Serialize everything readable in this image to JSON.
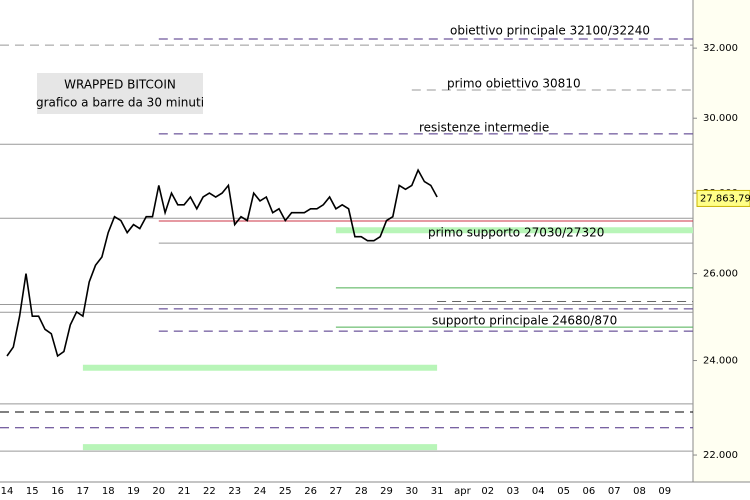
{
  "chart_data": {
    "type": "line",
    "log_scale": true,
    "title": "WRAPPED BITCOIN",
    "subtitle": "grafico a barre da 30 minuti",
    "categories": [
      "14",
      null,
      null,
      null,
      "15",
      null,
      null,
      null,
      "16",
      null,
      null,
      null,
      "17",
      null,
      null,
      null,
      "18",
      null,
      null,
      null,
      "19",
      null,
      null,
      null,
      "20",
      null,
      null,
      null,
      "21",
      null,
      null,
      null,
      "22",
      null,
      null,
      null,
      "23",
      null,
      null,
      null,
      "24",
      null,
      null,
      null,
      "25",
      null,
      null,
      null,
      "26",
      null,
      null,
      null,
      "27",
      null,
      null,
      null,
      "28",
      null,
      null,
      null,
      "29",
      null,
      null,
      null,
      "30",
      null,
      null,
      null,
      "31",
      null,
      null,
      null,
      "apr",
      null,
      null,
      null,
      "02",
      null,
      null,
      null,
      "03",
      null,
      null,
      null,
      "04",
      null,
      null,
      null,
      "05",
      null,
      null,
      null,
      "06",
      null,
      null,
      null,
      "07",
      null,
      null,
      null,
      "08",
      null,
      null,
      null,
      "09",
      null,
      null,
      null
    ],
    "series": [
      {
        "color": "#000000",
        "values": [
          24100,
          24300,
          25000,
          26000,
          25000,
          25000,
          24700,
          24600,
          24100,
          24200,
          24800,
          25100,
          25000,
          25800,
          26200,
          26400,
          27000,
          27400,
          27300,
          27000,
          27200,
          27100,
          27400,
          27400,
          28200,
          27500,
          28000,
          27700,
          27700,
          27900,
          27600,
          27900,
          28000,
          27900,
          28000,
          28200,
          27200,
          27400,
          27300,
          28000,
          27800,
          27900,
          27500,
          27600,
          27300,
          27500,
          27500,
          27500,
          27600,
          27600,
          27700,
          27900,
          27600,
          27700,
          27600,
          26900,
          26900,
          26800,
          26800,
          26900,
          27300,
          27400,
          28200,
          28100,
          28200,
          28600,
          28300,
          28200,
          27900,
          null,
          null,
          null,
          null,
          null,
          null,
          null,
          null,
          null,
          null,
          null,
          null,
          null,
          null,
          null,
          null,
          null,
          null,
          null,
          null,
          null,
          null,
          null,
          null,
          null,
          null,
          null,
          null,
          null,
          null,
          null,
          null,
          null,
          null,
          null,
          null,
          null,
          null,
          null
        ]
      }
    ],
    "ylim": [
      21500,
      33450
    ],
    "yticks": [
      {
        "value": 22000,
        "label": "22.000"
      },
      {
        "value": 24000,
        "label": "24.000"
      },
      {
        "value": 26000,
        "label": "26.000"
      },
      {
        "value": 28000,
        "label": "28.000"
      },
      {
        "value": 30000,
        "label": "30.000"
      },
      {
        "value": 32000,
        "label": "32.000"
      }
    ],
    "last_price": {
      "value": 27863.79,
      "label": "27.863,79"
    },
    "annotations": [
      "obiettivo principale 32100/32240",
      "primo obiettivo 30810",
      "resistenze intermedie",
      "primo supporto 27030/27320",
      "supporto principale 24680/870"
    ],
    "levels": [
      {
        "value": 32270,
        "color": "#4b2e83",
        "style": "dashed",
        "from": "20"
      },
      {
        "value": 32090,
        "color": "#999999",
        "style": "dashed"
      },
      {
        "value": 30790,
        "color": "#999999",
        "style": "dashed",
        "from": "30"
      },
      {
        "value": 29570,
        "color": "#4b2e83",
        "style": "dashed",
        "from": "20"
      },
      {
        "value": 29290,
        "color": "#999999",
        "style": "solid"
      },
      {
        "value": 27360,
        "color": "#999999",
        "style": "solid"
      },
      {
        "value": 27290,
        "color": "#cc3344",
        "style": "solid",
        "from": "20"
      },
      {
        "value": 27060,
        "color": "#b8f5b8",
        "style": "band",
        "from": "27"
      },
      {
        "value": 26740,
        "color": "#999999",
        "style": "solid",
        "from": "20"
      },
      {
        "value": 25660,
        "color": "#4caf50",
        "style": "solid",
        "from": "27"
      },
      {
        "value": 25340,
        "color": "#666666",
        "style": "dashed",
        "from": "31"
      },
      {
        "value": 25270,
        "color": "#999999",
        "style": "solid"
      },
      {
        "value": 25170,
        "color": "#4b2e83",
        "style": "dashed",
        "from": "20"
      },
      {
        "value": 25090,
        "color": "#999999",
        "style": "solid"
      },
      {
        "value": 24750,
        "color": "#4caf50",
        "style": "solid",
        "from": "27"
      },
      {
        "value": 24660,
        "color": "#4b2e83",
        "style": "dashed",
        "from": "20"
      },
      {
        "value": 23840,
        "color": "#b8f5b8",
        "style": "band",
        "from": "17",
        "to": "31"
      },
      {
        "value": 23060,
        "color": "#999999",
        "style": "solid"
      },
      {
        "value": 22890,
        "color": "#000000",
        "style": "dashed"
      },
      {
        "value": 22560,
        "color": "#4b2e83",
        "style": "dashed"
      },
      {
        "value": 22160,
        "color": "#b8f5b8",
        "style": "band",
        "from": "17",
        "to": "31"
      },
      {
        "value": 22080,
        "color": "#999999",
        "style": "solid"
      }
    ]
  }
}
